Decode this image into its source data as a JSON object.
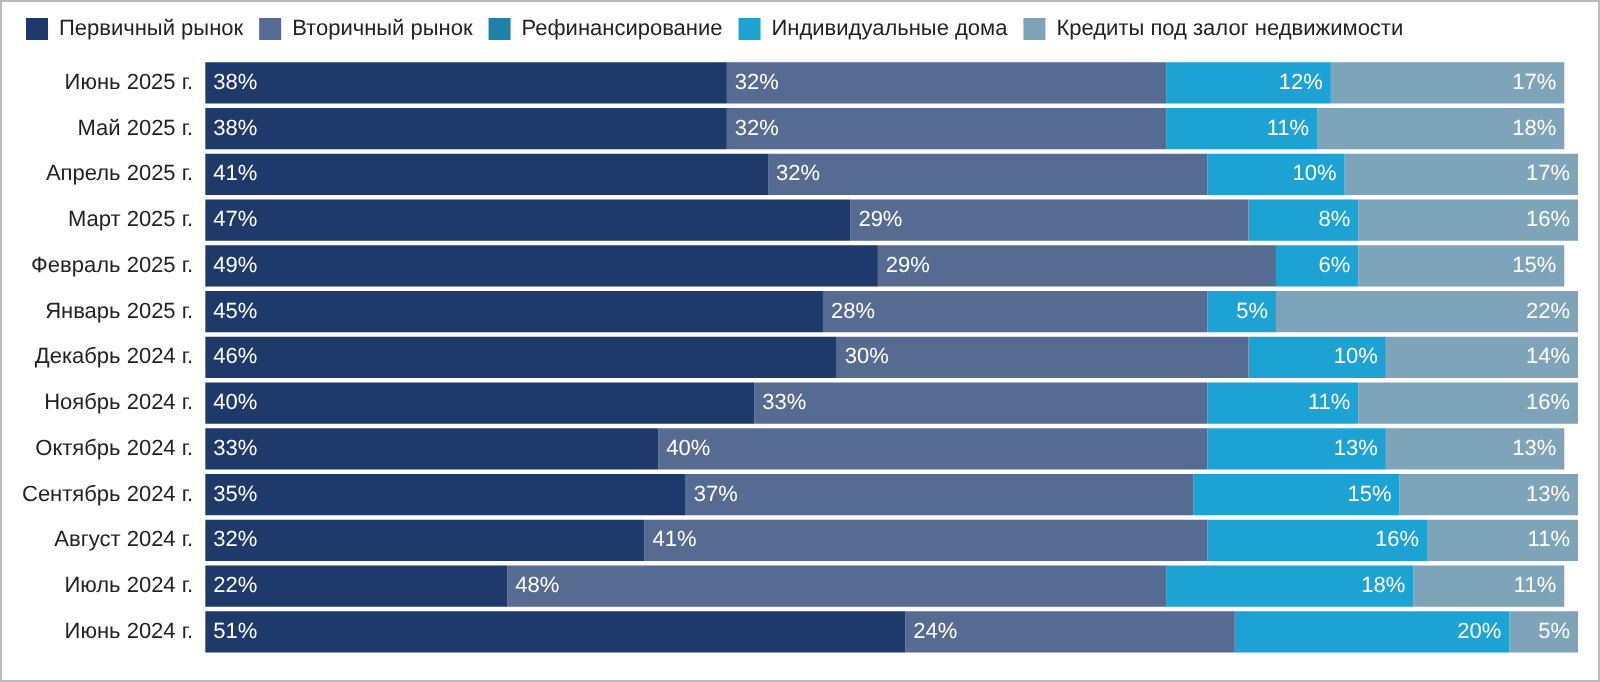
{
  "chart_data": {
    "type": "bar",
    "orientation": "horizontal",
    "stacked": true,
    "legend": "top left",
    "tick_labels": "y",
    "grid": false,
    "xlim": [
      0,
      100
    ],
    "categories": [
      "Июнь 2025 г.",
      "Май 2025 г.",
      "Апрель 2025 г.",
      "Март 2025 г.",
      "Февраль 2025 г.",
      "Январь 2025 г.",
      "Декабрь 2024 г.",
      "Ноябрь 2024 г.",
      "Октябрь 2024 г.",
      "Сентябрь 2024 г.",
      "Август 2024 г.",
      "Июль 2024 г.",
      "Июнь 2024 г."
    ],
    "series": [
      {
        "name": "Первичный рынок",
        "color": "#1d3a6b",
        "values": [
          38,
          38,
          41,
          47,
          49,
          45,
          46,
          40,
          33,
          35,
          32,
          22,
          51
        ],
        "value_labels": [
          "38%",
          "38%",
          "41%",
          "47%",
          "49%",
          "45%",
          "46%",
          "40%",
          "33%",
          "35%",
          "32%",
          "22%",
          "51%"
        ]
      },
      {
        "name": "Вторичный рынок",
        "color": "#566b91",
        "values": [
          32,
          32,
          32,
          29,
          29,
          28,
          30,
          33,
          40,
          37,
          41,
          48,
          24
        ],
        "value_labels": [
          "32%",
          "32%",
          "32%",
          "29%",
          "29%",
          "28%",
          "30%",
          "33%",
          "40%",
          "37%",
          "41%",
          "48%",
          "24%"
        ]
      },
      {
        "name": "Рефинансирование",
        "color": "#1f80a8",
        "values": [
          0,
          0,
          0,
          0,
          0,
          0,
          0,
          0,
          0,
          0,
          0,
          0,
          0
        ],
        "value_labels": [
          null,
          null,
          null,
          null,
          null,
          null,
          null,
          null,
          null,
          null,
          null,
          null,
          null
        ]
      },
      {
        "name": "Индивидуальные дома",
        "color": "#1ca3d4",
        "values": [
          12,
          11,
          10,
          8,
          6,
          5,
          10,
          11,
          13,
          15,
          16,
          18,
          20
        ],
        "value_labels": [
          "12%",
          "11%",
          "10%",
          "8%",
          "6%",
          "5%",
          "10%",
          "11%",
          "13%",
          "15%",
          "16%",
          "18%",
          "20%"
        ]
      },
      {
        "name": "Кредиты под залог недвижимости",
        "color": "#7ea4ba",
        "values": [
          17,
          18,
          17,
          16,
          15,
          22,
          14,
          16,
          13,
          13,
          11,
          11,
          5
        ],
        "value_labels": [
          "17%",
          "18%",
          "17%",
          "16%",
          "15%",
          "22%",
          "14%",
          "16%",
          "13%",
          "13%",
          "11%",
          "11%",
          "5%"
        ]
      }
    ]
  }
}
